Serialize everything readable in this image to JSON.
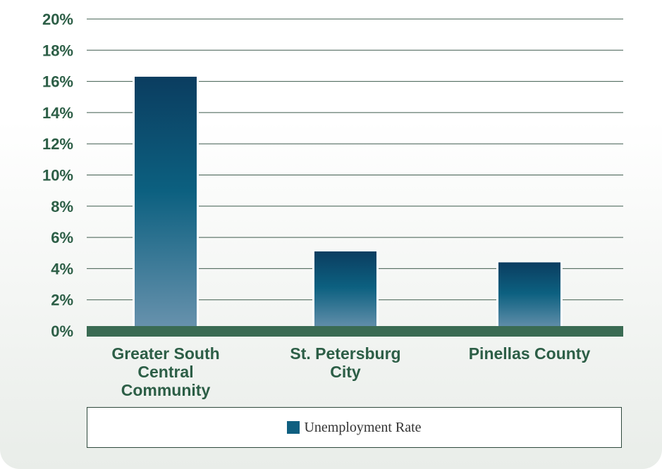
{
  "chart_data": {
    "type": "bar",
    "categories": [
      [
        "Greater South",
        "Central",
        "Community"
      ],
      [
        "St. Petersburg",
        "City"
      ],
      [
        "Pinellas County"
      ]
    ],
    "series": [
      {
        "name": "Unemployment Rate",
        "values": [
          16.3,
          5.1,
          4.4
        ],
        "color": "#0f5f80"
      }
    ],
    "ylim": [
      0,
      20
    ],
    "yticks": [
      0,
      2,
      4,
      6,
      8,
      10,
      12,
      14,
      16,
      18,
      20
    ],
    "ytick_suffix": "%",
    "grid": true,
    "baseline_color": "#3a6b53",
    "legend_position": "bottom",
    "title": "",
    "xlabel": "",
    "ylabel": ""
  },
  "legend": {
    "label": "Unemployment Rate",
    "swatch_color": "#0f5f80"
  }
}
